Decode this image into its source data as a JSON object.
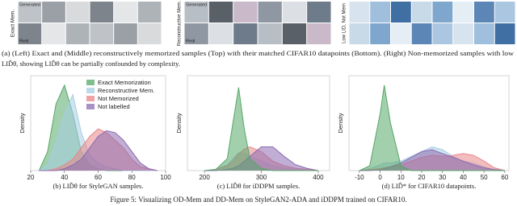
{
  "figure": {
    "panels": [
      {
        "labels": [
          "Generated",
          "Exact Mem.",
          "Real"
        ]
      },
      {
        "labels": [
          "Generated",
          "Reconstructive Mem.",
          "Real"
        ]
      },
      {
        "labels": [
          "Low LID, Not Mem"
        ]
      }
    ],
    "caption_a": [
      "(a) (Left) Exact and (Middle) reconstructively memorized samples (Top) with their matched CIFAR10 datapoints (Bottom). (Right) Non-memorized samples with low",
      "LID̂θ, showing LID̂θ can be partially confounded by complexity."
    ],
    "caption": "Figure 5: Visualizing OD-Mem and DD-Mem on StyleGAN2-ADA and iDDPM trained on CIFAR10."
  },
  "chart_data": [
    {
      "type": "area",
      "caption": "(b) LID̂θ for StyleGAN samples.",
      "ylabel": "Density",
      "legend": "upper right",
      "x": [
        25,
        30,
        35,
        40,
        45,
        50,
        55,
        60,
        65,
        70,
        75,
        80,
        85,
        90,
        95
      ],
      "xlim": [
        20,
        100
      ],
      "xticks": [
        20,
        40,
        60,
        80,
        100
      ],
      "ylim": [
        0,
        0.05
      ],
      "series": [
        {
          "name": "Exact Memorization",
          "color": "#55a868",
          "values": [
            0,
            0.01,
            0.035,
            0.045,
            0.03,
            0.01,
            0.003,
            0.001,
            0,
            0,
            0,
            0,
            0,
            0,
            0
          ]
        },
        {
          "name": "Reconstructive Mem.",
          "color": "#a6cde3",
          "values": [
            0,
            0.003,
            0.015,
            0.03,
            0.04,
            0.02,
            0.008,
            0.004,
            0.002,
            0.001,
            0,
            0,
            0,
            0,
            0
          ]
        },
        {
          "name": "Not Memorized",
          "color": "#e8868a",
          "values": [
            0,
            0,
            0.001,
            0.003,
            0.006,
            0.012,
            0.018,
            0.022,
            0.02,
            0.016,
            0.012,
            0.006,
            0.002,
            0.001,
            0
          ]
        },
        {
          "name": "Not labelled",
          "color": "#8c6bb1",
          "values": [
            0,
            0,
            0,
            0.001,
            0.003,
            0.006,
            0.012,
            0.018,
            0.021,
            0.02,
            0.016,
            0.01,
            0.004,
            0.001,
            0
          ]
        }
      ]
    },
    {
      "type": "area",
      "caption": "(c) LID̂θ for iDDPM samples.",
      "ylabel": "Density",
      "x": [
        200,
        220,
        240,
        250,
        260,
        270,
        280,
        300,
        320,
        340,
        360,
        380,
        400
      ],
      "xlim": [
        170,
        420
      ],
      "xticks": [
        200,
        300,
        400
      ],
      "ylim": [
        0,
        0.08
      ],
      "series": [
        {
          "color": "#a6cde3",
          "values": [
            0,
            0.001,
            0.005,
            0.01,
            0.015,
            0.014,
            0.012,
            0.008,
            0.004,
            0.002,
            0.001,
            0,
            0
          ]
        },
        {
          "color": "#e8868a",
          "values": [
            0,
            0.001,
            0.004,
            0.008,
            0.014,
            0.018,
            0.02,
            0.016,
            0.008,
            0.004,
            0.002,
            0.001,
            0
          ]
        },
        {
          "color": "#8c6bb1",
          "values": [
            0,
            0,
            0.001,
            0.002,
            0.004,
            0.008,
            0.012,
            0.02,
            0.02,
            0.012,
            0.005,
            0.002,
            0
          ]
        },
        {
          "color": "#55a868",
          "values": [
            0,
            0.001,
            0.01,
            0.04,
            0.07,
            0.035,
            0.01,
            0.002,
            0,
            0,
            0,
            0,
            0
          ]
        }
      ]
    },
    {
      "type": "area",
      "caption": "(d) LID̂* for CIFAR10 datapoints.",
      "ylabel": "Density",
      "x": [
        -10,
        -5,
        0,
        2,
        5,
        10,
        15,
        20,
        25,
        30,
        35,
        40,
        45,
        50,
        55,
        60
      ],
      "xlim": [
        -15,
        62
      ],
      "xticks": [
        -10,
        0,
        10,
        20,
        30,
        40,
        50,
        60
      ],
      "ylim": [
        0,
        0.1
      ],
      "series": [
        {
          "color": "#a6cde3",
          "values": [
            0,
            0.002,
            0.006,
            0.008,
            0.008,
            0.01,
            0.015,
            0.02,
            0.025,
            0.022,
            0.015,
            0.01,
            0.008,
            0.004,
            0.001,
            0
          ]
        },
        {
          "color": "#e8868a",
          "values": [
            0,
            0.001,
            0.002,
            0.003,
            0.004,
            0.006,
            0.01,
            0.014,
            0.016,
            0.015,
            0.016,
            0.018,
            0.016,
            0.01,
            0.003,
            0
          ]
        },
        {
          "color": "#8c6bb1",
          "values": [
            0,
            0,
            0.001,
            0.002,
            0.004,
            0.008,
            0.014,
            0.02,
            0.022,
            0.018,
            0.014,
            0.01,
            0.006,
            0.003,
            0.001,
            0
          ]
        },
        {
          "color": "#55a868",
          "values": [
            0,
            0.005,
            0.06,
            0.09,
            0.05,
            0.005,
            0,
            0,
            0,
            0,
            0,
            0,
            0,
            0,
            0,
            0
          ]
        }
      ]
    }
  ]
}
